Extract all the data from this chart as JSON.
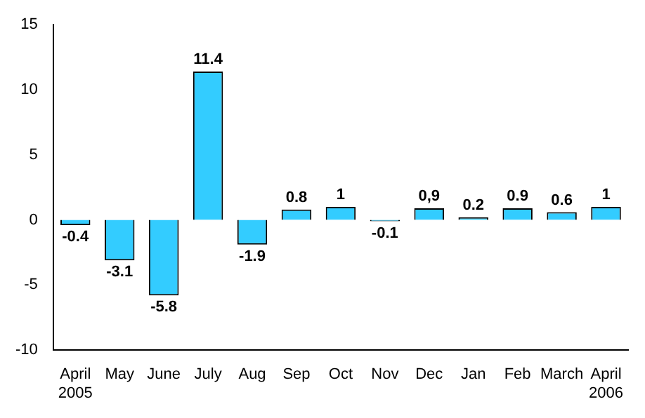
{
  "chart_data": {
    "type": "bar",
    "categories": [
      "April\n2005",
      "May",
      "June",
      "July",
      "Aug",
      "Sep",
      "Oct",
      "Nov",
      "Dec",
      "Jan",
      "Feb",
      "March",
      "April\n2006"
    ],
    "values": [
      -0.4,
      -3.1,
      -5.8,
      11.4,
      -1.9,
      0.8,
      1,
      -0.1,
      0.9,
      0.2,
      0.9,
      0.6,
      1
    ],
    "value_labels": [
      "-0.4",
      "-3.1",
      "-5.8",
      "11.4",
      "-1.9",
      "0.8",
      "1",
      "-0.1",
      "0,9",
      "0.2",
      "0.9",
      "0.6",
      "1"
    ],
    "color": "#33ccff",
    "ylim": [
      -10,
      15
    ],
    "yticks": [
      -10,
      -5,
      0,
      5,
      10,
      15
    ],
    "grid": false,
    "legend": false
  }
}
